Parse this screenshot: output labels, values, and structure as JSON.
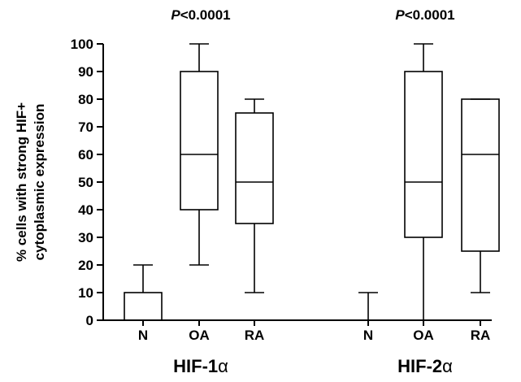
{
  "chart_data": {
    "type": "box",
    "ylabel_lines": [
      "% cells with strong HIF+",
      "cytoplasmic expression"
    ],
    "ylim": [
      0,
      100
    ],
    "yticks": [
      0,
      10,
      20,
      30,
      40,
      50,
      60,
      70,
      80,
      90,
      100
    ],
    "groups": [
      {
        "label_prefix": "HIF-1",
        "label_greek": "α",
        "pvalue_prefix": "P",
        "pvalue_rest": "<0.0001",
        "boxes": [
          {
            "category": "N",
            "min": 0,
            "q1": 0,
            "median": 0,
            "q3": 10,
            "max": 20
          },
          {
            "category": "OA",
            "min": 20,
            "q1": 40,
            "median": 60,
            "q3": 90,
            "max": 100
          },
          {
            "category": "RA",
            "min": 10,
            "q1": 35,
            "median": 50,
            "q3": 75,
            "max": 80
          }
        ]
      },
      {
        "label_prefix": "HIF-2",
        "label_greek": "α",
        "pvalue_prefix": "P",
        "pvalue_rest": "<0.0001",
        "boxes": [
          {
            "category": "N",
            "min": 0,
            "q1": 0,
            "median": 0,
            "q3": 0,
            "max": 10
          },
          {
            "category": "OA",
            "min": 0,
            "q1": 30,
            "median": 50,
            "q3": 90,
            "max": 100
          },
          {
            "category": "RA",
            "min": 10,
            "q1": 25,
            "median": 60,
            "q3": 80,
            "max": 80
          }
        ]
      }
    ]
  }
}
